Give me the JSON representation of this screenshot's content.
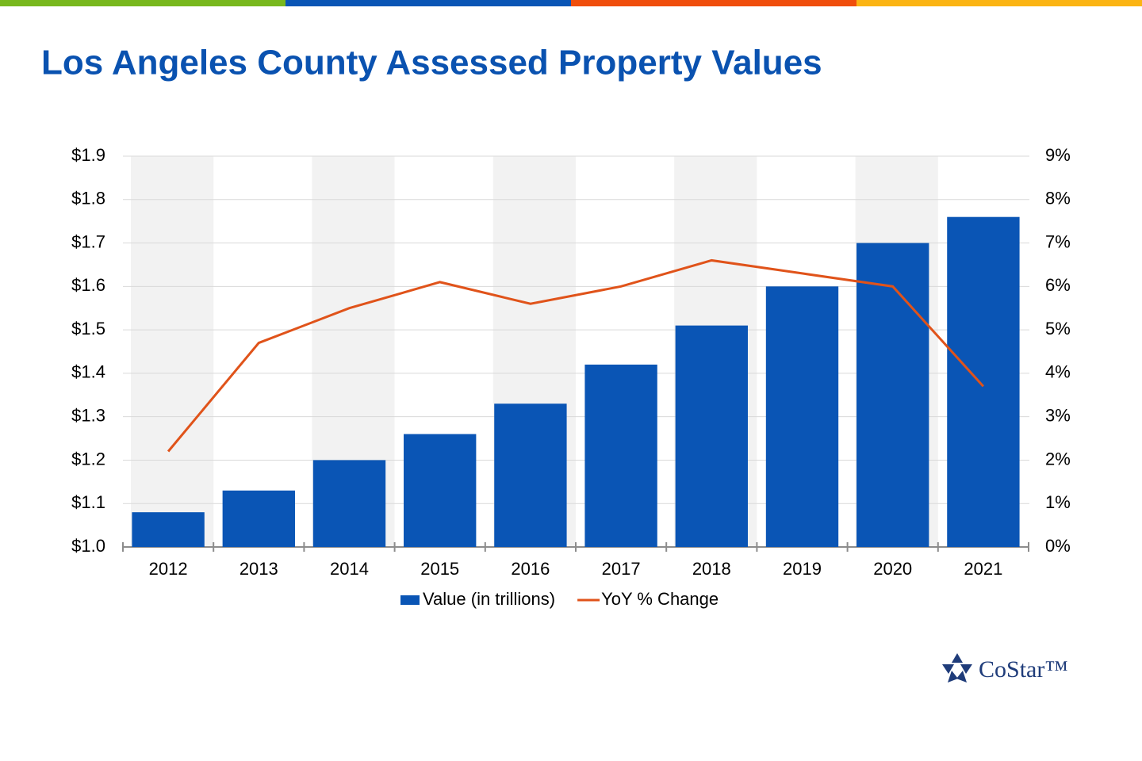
{
  "chart_data": {
    "type": "bar",
    "title": "Los Angeles County Assessed Property Values",
    "categories": [
      "2012",
      "2013",
      "2014",
      "2015",
      "2016",
      "2017",
      "2018",
      "2019",
      "2020",
      "2021"
    ],
    "series": [
      {
        "name": "Value (in trillions)",
        "type": "bar",
        "color": "#0a55b5",
        "values": [
          1.08,
          1.13,
          1.2,
          1.26,
          1.33,
          1.42,
          1.51,
          1.6,
          1.7,
          1.76
        ]
      },
      {
        "name": "YoY % Change",
        "type": "line",
        "axis": "y2",
        "color": "#e0531a",
        "values": [
          2.2,
          4.7,
          5.5,
          6.1,
          5.6,
          6.0,
          6.6,
          6.3,
          6.0,
          3.7
        ]
      }
    ],
    "ylim": [
      1.0,
      1.9
    ],
    "yticks": [
      {
        "value": 1.0,
        "label": "$1.0"
      },
      {
        "value": 1.1,
        "label": "$1.1"
      },
      {
        "value": 1.2,
        "label": "$1.2"
      },
      {
        "value": 1.3,
        "label": "$1.3"
      },
      {
        "value": 1.4,
        "label": "$1.4"
      },
      {
        "value": 1.5,
        "label": "$1.5"
      },
      {
        "value": 1.6,
        "label": "$1.6"
      },
      {
        "value": 1.7,
        "label": "$1.7"
      },
      {
        "value": 1.8,
        "label": "$1.8"
      },
      {
        "value": 1.9,
        "label": "$1.9"
      }
    ],
    "y2lim": [
      0,
      9
    ],
    "y2ticks": [
      {
        "value": 0,
        "label": "0%"
      },
      {
        "value": 1,
        "label": "1%"
      },
      {
        "value": 2,
        "label": "2%"
      },
      {
        "value": 3,
        "label": "3%"
      },
      {
        "value": 4,
        "label": "4%"
      },
      {
        "value": 5,
        "label": "5%"
      },
      {
        "value": 6,
        "label": "6%"
      },
      {
        "value": 7,
        "label": "7%"
      },
      {
        "value": 8,
        "label": "8%"
      },
      {
        "value": 9,
        "label": "9%"
      }
    ],
    "grid": true,
    "legend": "bottom",
    "logo": "CoStar™"
  }
}
